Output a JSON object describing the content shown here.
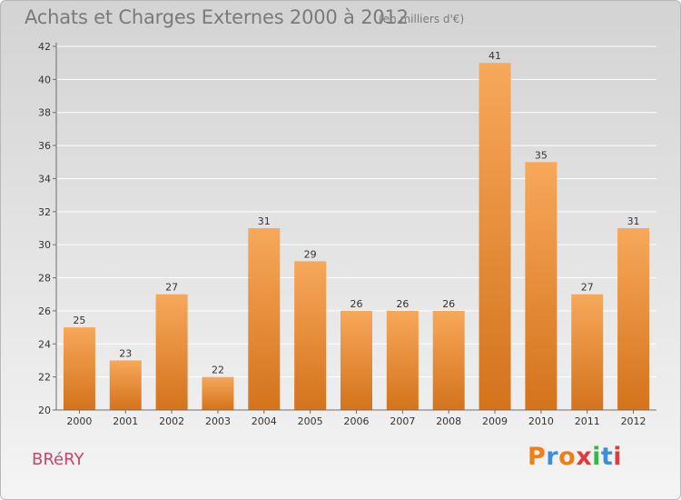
{
  "header": {
    "title": "Achats et Charges Externes 2000 à 2012",
    "subtitle": "(en milliers d'€)"
  },
  "footer": {
    "commune": "BRéRY",
    "brand": "Proxiti",
    "brand_colors": [
      "#f07d16",
      "#3b8fd6",
      "#f07d16",
      "#e23b3b",
      "#3bb54a",
      "#3b8fd6",
      "#e23b3b"
    ]
  },
  "colors": {
    "bar_top": "#f7a85a",
    "bar_bottom": "#d4731c",
    "grid": "#ffffff",
    "axis": "#6e6e6e"
  },
  "chart_data": {
    "type": "bar",
    "categories": [
      "2000",
      "2001",
      "2002",
      "2003",
      "2004",
      "2005",
      "2006",
      "2007",
      "2008",
      "2009",
      "2010",
      "2011",
      "2012"
    ],
    "values": [
      25,
      23,
      27,
      22,
      31,
      29,
      26,
      26,
      26,
      41,
      35,
      27,
      31
    ],
    "data_labels": [
      "25",
      "23",
      "27",
      "22",
      "31",
      "29",
      "26",
      "26",
      "26",
      "41",
      "35",
      "27",
      "31"
    ],
    "yticks": [
      20,
      22,
      24,
      26,
      28,
      30,
      32,
      34,
      36,
      38,
      40,
      42
    ],
    "ylim": [
      20,
      42
    ],
    "grid": true,
    "legend": "none"
  }
}
